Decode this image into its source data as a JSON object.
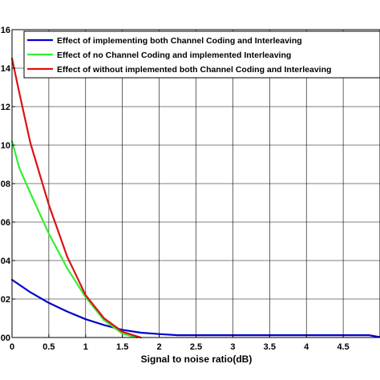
{
  "chart_data": {
    "type": "line",
    "title": "",
    "xlabel": "Signal to noise ratio(dB)",
    "ylabel": "",
    "xlim": [
      0,
      5
    ],
    "ylim": [
      0,
      0.16
    ],
    "grid": true,
    "legend_position": "top-right",
    "x_ticks": [
      0,
      0.5,
      1,
      1.5,
      2,
      2.5,
      3,
      3.5,
      4,
      4.5
    ],
    "x_tick_labels": [
      "0",
      "0.5",
      "1",
      "1.5",
      "2",
      "2.5",
      "3",
      "3.5",
      "4",
      "4.5"
    ],
    "y_ticks": [
      0,
      0.02,
      0.04,
      0.06,
      0.08,
      0.1,
      0.12,
      0.14,
      0.16
    ],
    "y_tick_labels": [
      "00",
      "02",
      "04",
      "06",
      "08",
      "10",
      "12",
      "14",
      "16"
    ],
    "series": [
      {
        "name": "Effect of  implementing both Channel Coding and Interleaving",
        "color": "#0000cc",
        "x": [
          0,
          0.25,
          0.5,
          0.75,
          1,
          1.25,
          1.5,
          1.75,
          2,
          2.25,
          2.5,
          3,
          3.5,
          4,
          4.5,
          4.85,
          5
        ],
        "y": [
          0.03,
          0.0235,
          0.018,
          0.0135,
          0.0095,
          0.0065,
          0.004,
          0.0025,
          0.0018,
          0.0012,
          0.0012,
          0.0012,
          0.0012,
          0.0012,
          0.0012,
          0.0012,
          0.0002
        ]
      },
      {
        "name": "Effect of  no Channel Coding and implemented Interleaving",
        "color": "#33ee33",
        "x": [
          0,
          0.1,
          0.25,
          0.5,
          0.75,
          1,
          1.25,
          1.5,
          1.7
        ],
        "y": [
          0.102,
          0.088,
          0.075,
          0.054,
          0.036,
          0.021,
          0.009,
          0.002,
          0.0
        ]
      },
      {
        "name": "Effect of  without implemented both  Channel Coding and  Interleaving",
        "color": "#dd1111",
        "x": [
          0,
          0.1,
          0.25,
          0.5,
          0.75,
          1,
          1.25,
          1.5,
          1.75
        ],
        "y": [
          0.145,
          0.127,
          0.101,
          0.069,
          0.042,
          0.022,
          0.01,
          0.003,
          0.0
        ]
      }
    ]
  }
}
